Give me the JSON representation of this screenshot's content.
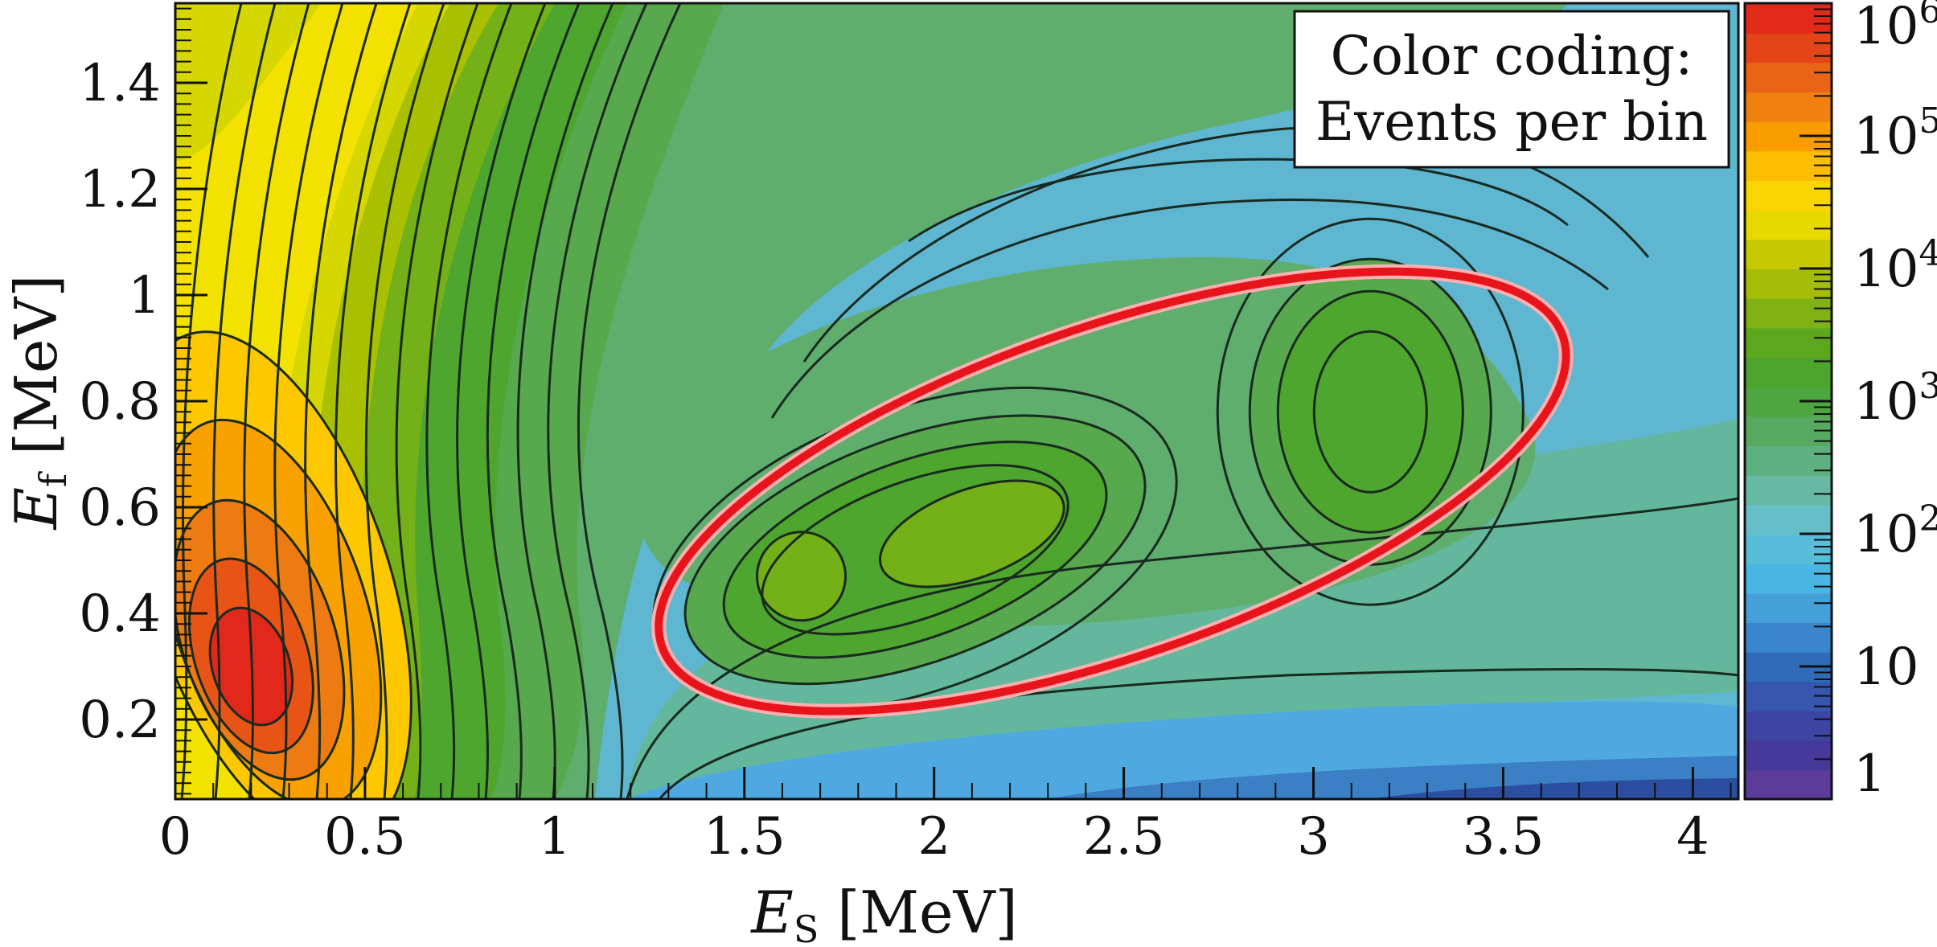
{
  "chart_data": {
    "type": "heatmap",
    "xlabel_main": "E",
    "xlabel_sub": "S",
    "xlabel_unit": "[MeV]",
    "ylabel_main": "E",
    "ylabel_sub": "f",
    "ylabel_unit": "[MeV]",
    "xlim": [
      0,
      4.12
    ],
    "ylim": [
      0.05,
      1.55
    ],
    "x_ticks": [
      "0",
      "0.5",
      "1",
      "1.5",
      "2",
      "2.5",
      "3",
      "3.5",
      "4"
    ],
    "y_ticks": [
      "0.2",
      "0.4",
      "0.6",
      "0.8",
      "1",
      "1.2",
      "1.4"
    ],
    "x_tick_values": [
      0,
      0.5,
      1,
      1.5,
      2,
      2.5,
      3,
      3.5,
      4
    ],
    "y_tick_values": [
      0.2,
      0.4,
      0.6,
      0.8,
      1.0,
      1.2,
      1.4
    ],
    "colorbar": {
      "scale": "log",
      "range": [
        1,
        1000000
      ],
      "tick_labels": [
        {
          "base": "1",
          "exp": ""
        },
        {
          "base": "10",
          "exp": ""
        },
        {
          "base": "10",
          "exp": "2"
        },
        {
          "base": "10",
          "exp": "3"
        },
        {
          "base": "10",
          "exp": "4"
        },
        {
          "base": "10",
          "exp": "5"
        },
        {
          "base": "10",
          "exp": "6"
        }
      ],
      "tick_values": [
        1,
        10,
        100,
        1000,
        10000,
        100000,
        1000000
      ]
    },
    "legend_box": {
      "line1": "Color coding:",
      "line2": "Events per bin",
      "placement": "top-right"
    },
    "peaks": [
      {
        "x": 0.2,
        "y": 0.3,
        "level": "~5e5"
      },
      {
        "x": 1.6,
        "y": 0.45,
        "level": "~2e4"
      },
      {
        "x": 2.0,
        "y": 0.55,
        "level": "~2e4"
      },
      {
        "x": 3.15,
        "y": 0.78,
        "level": "~1e4"
      }
    ],
    "annotation_ellipse": {
      "center_x": 2.47,
      "center_y": 0.63,
      "color": "#e8141c"
    },
    "grid": false,
    "colors": {
      "low": "#5b3c99",
      "mid_low": "#45b8e0",
      "mid": "#5aa84a",
      "mid_high": "#e8e000",
      "high": "#e31c1c"
    }
  }
}
